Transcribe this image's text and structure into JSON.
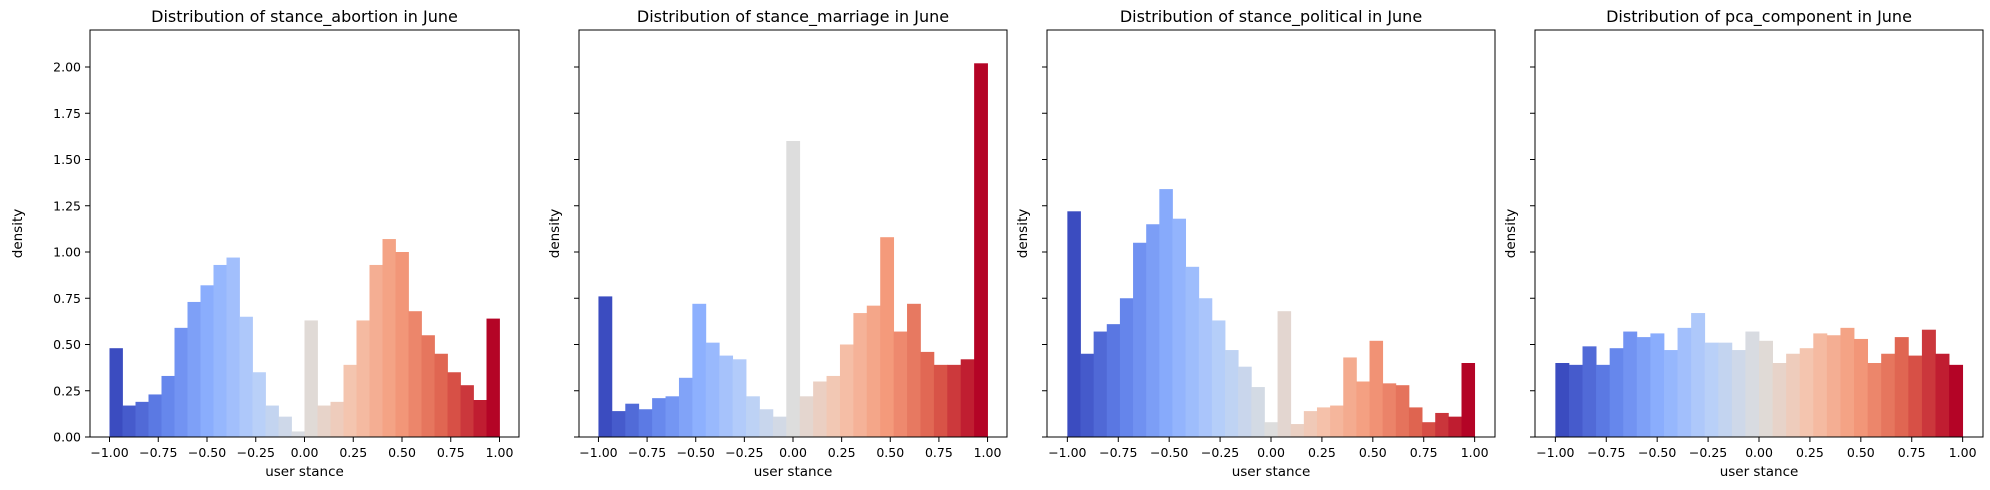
{
  "chart_data": [
    {
      "type": "bar",
      "title": "Distribution of stance_abortion in June",
      "xlabel": "user stance",
      "ylabel": "density",
      "xlim": [
        -1.1,
        1.1
      ],
      "ylim": [
        0,
        2.2
      ],
      "xticks": [
        -1.0,
        -0.75,
        -0.5,
        -0.25,
        0.0,
        0.25,
        0.5,
        0.75,
        1.0
      ],
      "xtick_labels": [
        "−1.00",
        "−0.75",
        "−0.50",
        "−0.25",
        "0.00",
        "0.25",
        "0.50",
        "0.75",
        "1.00"
      ],
      "yticks": [
        0,
        0.25,
        0.5,
        0.75,
        1.0,
        1.25,
        1.5,
        1.75,
        2.0
      ],
      "ytick_labels": [
        "0.00",
        "0.25",
        "0.50",
        "0.75",
        "1.00",
        "1.25",
        "1.50",
        "1.75",
        "2.00"
      ],
      "bin_range": [
        -1.0,
        1.0
      ],
      "values": [
        0.48,
        0.17,
        0.19,
        0.23,
        0.33,
        0.59,
        0.73,
        0.82,
        0.93,
        0.97,
        0.65,
        0.35,
        0.17,
        0.11,
        0.03,
        0.63,
        0.17,
        0.19,
        0.39,
        0.63,
        0.93,
        1.07,
        1.0,
        0.68,
        0.55,
        0.45,
        0.35,
        0.28,
        0.2,
        0.64
      ],
      "colormap": "coolwarm",
      "grid": false
    },
    {
      "type": "bar",
      "title": "Distribution of stance_marriage in June",
      "xlabel": "user stance",
      "ylabel": "density",
      "xlim": [
        -1.1,
        1.1
      ],
      "ylim": [
        0,
        2.2
      ],
      "xticks": [
        -1.0,
        -0.75,
        -0.5,
        -0.25,
        0.0,
        0.25,
        0.5,
        0.75,
        1.0
      ],
      "xtick_labels": [
        "−1.00",
        "−0.75",
        "−0.50",
        "−0.25",
        "0.00",
        "0.25",
        "0.50",
        "0.75",
        "1.00"
      ],
      "bin_range": [
        -1.0,
        1.0
      ],
      "values": [
        0.76,
        0.14,
        0.18,
        0.15,
        0.21,
        0.22,
        0.32,
        0.72,
        0.51,
        0.44,
        0.42,
        0.22,
        0.15,
        0.11,
        1.6,
        0.22,
        0.3,
        0.33,
        0.5,
        0.67,
        0.71,
        1.08,
        0.57,
        0.72,
        0.46,
        0.39,
        0.39,
        0.42,
        2.02
      ],
      "colormap": "coolwarm",
      "grid": false
    },
    {
      "type": "bar",
      "title": "Distribution of stance_political in June",
      "xlabel": "user stance",
      "ylabel": "density",
      "xlim": [
        -1.1,
        1.1
      ],
      "ylim": [
        0,
        2.2
      ],
      "xticks": [
        -1.0,
        -0.75,
        -0.5,
        -0.25,
        0.0,
        0.25,
        0.5,
        0.75,
        1.0
      ],
      "xtick_labels": [
        "−1.00",
        "−0.75",
        "−0.50",
        "−0.25",
        "0.00",
        "0.25",
        "0.50",
        "0.75",
        "1.00"
      ],
      "bin_range": [
        -1.0,
        1.0
      ],
      "values": [
        1.22,
        0.45,
        0.57,
        0.61,
        0.75,
        1.05,
        1.15,
        1.34,
        1.18,
        0.92,
        0.75,
        0.63,
        0.47,
        0.38,
        0.27,
        0.08,
        0.68,
        0.07,
        0.14,
        0.16,
        0.17,
        0.43,
        0.3,
        0.52,
        0.29,
        0.28,
        0.16,
        0.08,
        0.13,
        0.11,
        0.4
      ],
      "colormap": "coolwarm",
      "grid": false
    },
    {
      "type": "bar",
      "title": "Distribution of pca_component in June",
      "xlabel": "user stance",
      "ylabel": "density",
      "xlim": [
        -1.1,
        1.1
      ],
      "ylim": [
        0,
        2.2
      ],
      "xticks": [
        -1.0,
        -0.75,
        -0.5,
        -0.25,
        0.0,
        0.25,
        0.5,
        0.75,
        1.0
      ],
      "xtick_labels": [
        "−1.00",
        "−0.75",
        "−0.50",
        "−0.25",
        "0.00",
        "0.25",
        "0.50",
        "0.75",
        "1.00"
      ],
      "bin_range": [
        -1.0,
        1.0
      ],
      "values": [
        0.4,
        0.39,
        0.49,
        0.39,
        0.48,
        0.57,
        0.54,
        0.56,
        0.47,
        0.59,
        0.67,
        0.51,
        0.51,
        0.47,
        0.57,
        0.52,
        0.4,
        0.45,
        0.48,
        0.56,
        0.55,
        0.59,
        0.53,
        0.4,
        0.45,
        0.54,
        0.44,
        0.58,
        0.45,
        0.39
      ],
      "colormap": "coolwarm",
      "grid": false
    }
  ]
}
